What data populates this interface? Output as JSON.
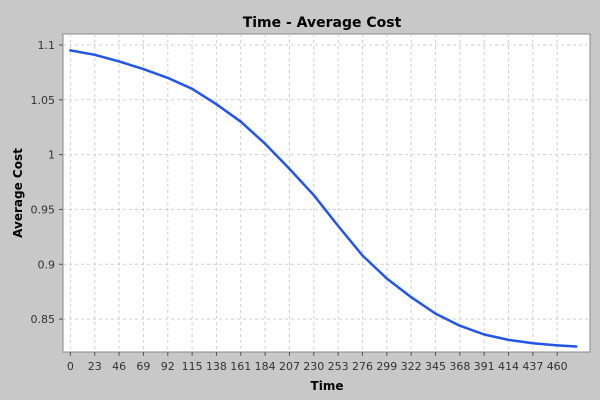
{
  "chart_data": {
    "type": "line",
    "title": "Time - Average Cost",
    "xlabel": "Time",
    "ylabel": "Average Cost",
    "xlim": [
      -7,
      491
    ],
    "ylim": [
      0.82,
      1.11
    ],
    "x_ticks": [
      0,
      23,
      46,
      69,
      92,
      115,
      138,
      161,
      184,
      207,
      230,
      253,
      276,
      299,
      322,
      345,
      368,
      391,
      414,
      437,
      460
    ],
    "y_ticks": [
      1.1,
      1.05,
      1,
      0.95,
      0.9,
      0.85
    ],
    "y_tick_labels": [
      "1.1",
      "1.05",
      "1",
      "0.95",
      "0.9",
      "0.85"
    ],
    "grid": true,
    "series": [
      {
        "color": "#2255e8",
        "x": [
          0,
          23,
          46,
          69,
          92,
          115,
          138,
          161,
          184,
          207,
          230,
          253,
          276,
          299,
          322,
          345,
          368,
          391,
          414,
          437,
          460,
          478
        ],
        "y": [
          1.095,
          1.091,
          1.085,
          1.078,
          1.07,
          1.06,
          1.046,
          1.03,
          1.01,
          0.987,
          0.963,
          0.935,
          0.908,
          0.887,
          0.87,
          0.855,
          0.844,
          0.836,
          0.831,
          0.828,
          0.826,
          0.825
        ]
      }
    ]
  }
}
